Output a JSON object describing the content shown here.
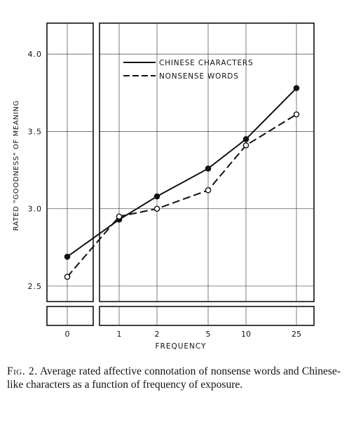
{
  "chart_data": {
    "type": "line",
    "title": "",
    "xlabel": "FREQUENCY",
    "ylabel": "RATED \"GOODNESS\" OF MEANING",
    "x": [
      "0",
      "1",
      "2",
      "5",
      "10",
      "25"
    ],
    "ylim": [
      2.4,
      4.2
    ],
    "yticks": [
      "2.5",
      "3.0",
      "3.5",
      "4.0"
    ],
    "ytick_values": [
      2.5,
      3.0,
      3.5,
      4.0
    ],
    "grid": true,
    "legend_position": "top-right",
    "series": [
      {
        "name": "CHINESE CHARACTERS",
        "style": "solid",
        "marker": "filled-circle",
        "values": [
          2.69,
          2.93,
          3.08,
          3.26,
          3.45,
          3.78
        ]
      },
      {
        "name": "NONSENSE WORDS",
        "style": "dashed",
        "marker": "open-circle",
        "values": [
          2.56,
          2.95,
          3.0,
          3.12,
          3.41,
          3.61
        ]
      }
    ]
  },
  "caption": {
    "label": "Fig. 2.",
    "text": "Average rated affective connotation of nonsense words and Chinese-like characters as a function of frequency of exposure."
  }
}
